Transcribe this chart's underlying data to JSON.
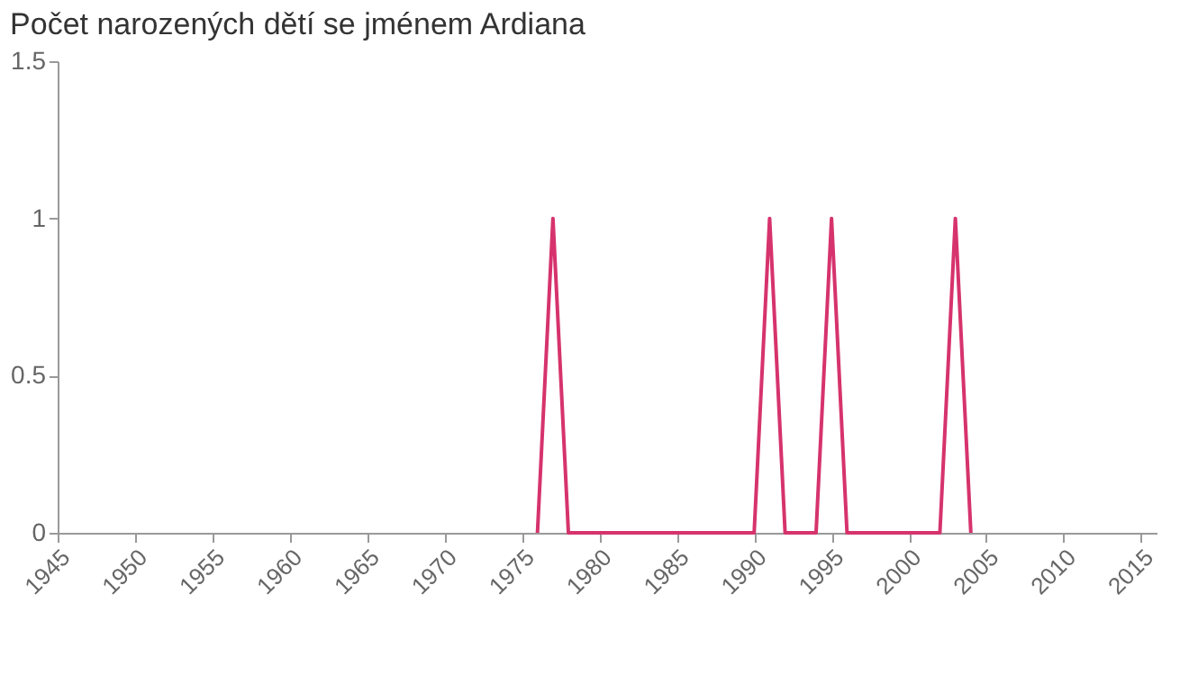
{
  "chart_data": {
    "type": "line",
    "title": "Počet narozených dětí se jménem Ardiana",
    "x": [
      1976,
      1977,
      1978,
      1979,
      1980,
      1981,
      1982,
      1983,
      1984,
      1985,
      1986,
      1987,
      1988,
      1989,
      1990,
      1991,
      1992,
      1993,
      1994,
      1995,
      1996,
      1997,
      1998,
      1999,
      2000,
      2001,
      2002,
      2003,
      2004
    ],
    "series": [
      {
        "color": "#d6336c",
        "values": [
          0,
          1,
          0,
          0,
          0,
          0,
          0,
          0,
          0,
          0,
          0,
          0,
          0,
          0,
          0,
          1,
          0,
          0,
          0,
          1,
          0,
          0,
          0,
          0,
          0,
          0,
          0,
          1,
          0
        ]
      }
    ],
    "xlim": [
      1945,
      2016
    ],
    "xticks": [
      1945,
      1950,
      1955,
      1960,
      1965,
      1970,
      1975,
      1980,
      1985,
      1990,
      1995,
      2000,
      2005,
      2010,
      2015
    ],
    "ylim": [
      0,
      1.5
    ],
    "yticks": [
      0,
      0.5,
      1,
      1.5
    ],
    "grid": false,
    "legend": false,
    "marker": "none",
    "line_style": "solid"
  }
}
